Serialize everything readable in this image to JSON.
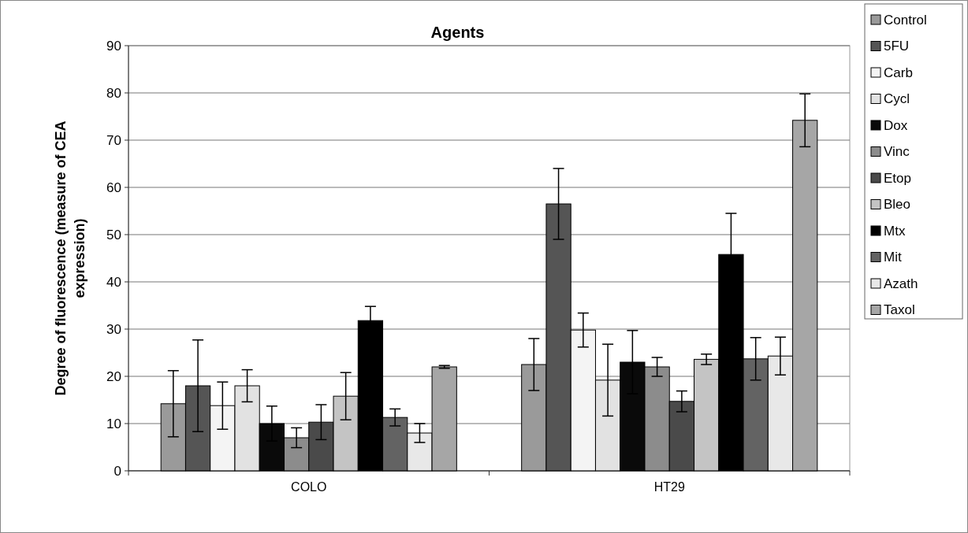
{
  "chart_data": {
    "type": "bar",
    "title": "Agents",
    "ylabel": "Degree of fluorescence (measure of CEA expression)",
    "categories": [
      "COLO",
      "HT29"
    ],
    "ylim": [
      0,
      90
    ],
    "yticks": [
      0,
      10,
      20,
      30,
      40,
      50,
      60,
      70,
      80,
      90
    ],
    "grid": "y",
    "legend": "right",
    "series": [
      {
        "name": "Control",
        "color": "#9a9a9a",
        "values": [
          14.2,
          22.5
        ],
        "errors": [
          7,
          5.5
        ]
      },
      {
        "name": "5FU",
        "color": "#555555",
        "values": [
          18,
          56.5
        ],
        "errors": [
          9.7,
          7.5
        ]
      },
      {
        "name": "Carb",
        "color": "#f4f4f4",
        "values": [
          13.8,
          29.8
        ],
        "errors": [
          5,
          3.6
        ]
      },
      {
        "name": "Cycl",
        "color": "#e2e2e2",
        "values": [
          18,
          19.2
        ],
        "errors": [
          3.4,
          7.6
        ]
      },
      {
        "name": "Dox",
        "color": "#0a0a0a",
        "values": [
          10,
          23
        ],
        "errors": [
          3.7,
          6.7
        ]
      },
      {
        "name": "Vinc",
        "color": "#8c8c8c",
        "values": [
          7,
          22
        ],
        "errors": [
          2.1,
          2
        ]
      },
      {
        "name": "Etop",
        "color": "#4a4a4a",
        "values": [
          10.3,
          14.7
        ],
        "errors": [
          3.7,
          2.2
        ]
      },
      {
        "name": "Bleo",
        "color": "#c4c4c4",
        "values": [
          15.8,
          23.6
        ],
        "errors": [
          5,
          1.1
        ]
      },
      {
        "name": "Mtx",
        "color": "#000000",
        "values": [
          31.8,
          45.8
        ],
        "errors": [
          3,
          8.7
        ]
      },
      {
        "name": "Mit",
        "color": "#636363",
        "values": [
          11.3,
          23.7
        ],
        "errors": [
          1.8,
          4.5
        ]
      },
      {
        "name": "Azath",
        "color": "#e8e8e8",
        "values": [
          8,
          24.3
        ],
        "errors": [
          2,
          4
        ]
      },
      {
        "name": "Taxol",
        "color": "#a6a6a6",
        "values": [
          22,
          74.2
        ],
        "errors": [
          0.3,
          5.6
        ]
      }
    ]
  }
}
